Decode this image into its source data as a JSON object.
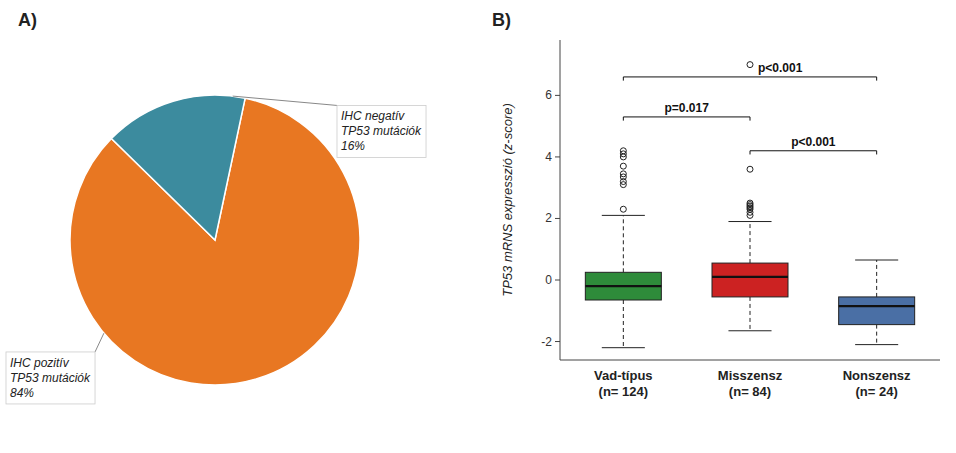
{
  "chart_data": [
    {
      "type": "pie",
      "title": "A)",
      "categories": [
        "IHC pozitív\nTP53 mutációk\n84%",
        "IHC negatív\nTP53 mutációk\n16%"
      ],
      "values": [
        84,
        16
      ],
      "colors": [
        "#E87722",
        "#3C8B9E"
      ]
    },
    {
      "type": "box",
      "title": "B)",
      "categories": [
        "Vad-típus\n(n= 124)",
        "Misszensz\n(n= 84)",
        "Nonszensz\n(n= 24)"
      ],
      "values": [
        {
          "median": -0.2,
          "q1": -0.65,
          "q3": 0.25,
          "whislo": -2.2,
          "whishi": 2.1,
          "fliers": [
            2.3,
            3.1,
            3.2,
            3.35,
            3.45,
            3.7,
            4.0,
            4.1,
            4.2
          ]
        },
        {
          "median": 0.1,
          "q1": -0.55,
          "q3": 0.55,
          "whislo": -1.65,
          "whishi": 1.9,
          "fliers": [
            2.1,
            2.2,
            2.3,
            2.35,
            2.4,
            2.45,
            2.5,
            3.6,
            7.0
          ]
        },
        {
          "median": -0.85,
          "q1": -1.45,
          "q3": -0.55,
          "whislo": -2.1,
          "whishi": 0.65,
          "fliers": []
        }
      ],
      "colors": [
        "#2E8B3A",
        "#CC2222",
        "#4A6FA5"
      ],
      "y_label": "TP53 mRNS expresszió (z-score)",
      "ylim": [
        -2.6,
        7.8
      ],
      "yticks": [
        -2,
        0,
        2,
        4,
        6
      ],
      "grid": false,
      "annotations": [
        {
          "x1": 1,
          "x2": 2,
          "y": 5.3,
          "text": "p=0.017"
        },
        {
          "x1": 1,
          "x2": 3,
          "y": 6.6,
          "text": "p<0.001"
        },
        {
          "x1": 2,
          "x2": 3,
          "y": 4.2,
          "text": "p<0.001"
        }
      ]
    }
  ]
}
